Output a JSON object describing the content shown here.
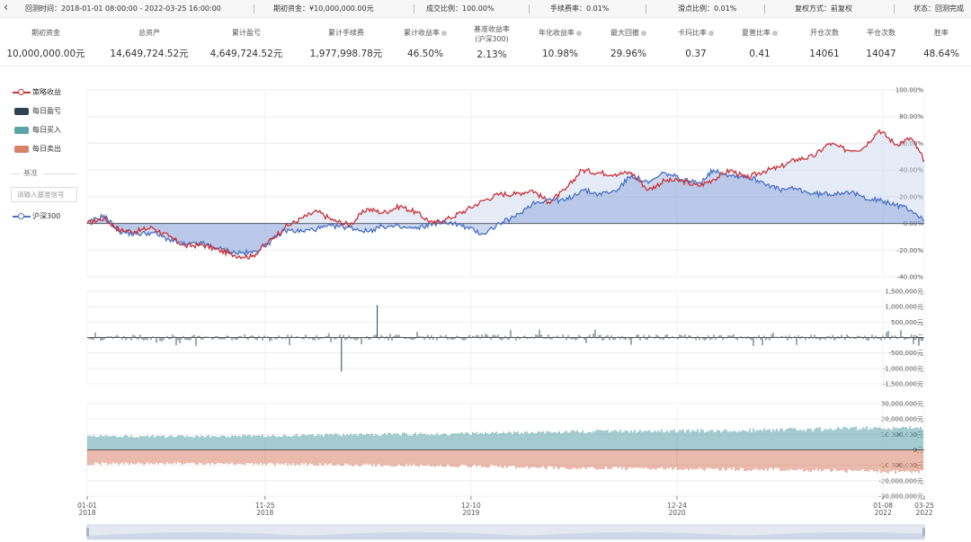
{
  "topbar": {
    "back_icon": "‹",
    "items": [
      "回测时间：2018-01-01 08:00:00 - 2022-03-25 16:00:00",
      "期初资金：¥10,000,000.00元",
      "成交比例：100.00%",
      "手续费率：0.01%",
      "滑点比例：0.01%",
      "复权方式：前复权",
      "状态：回测完成"
    ]
  },
  "stats": [
    {
      "label": "期初资金",
      "value": "10,000,000.00元"
    },
    {
      "label": "总资产",
      "value": "14,649,724.52元"
    },
    {
      "label": "累计盈亏",
      "value": "4,649,724.52元"
    },
    {
      "label": "累计手续费",
      "value": "1,977,998.78元"
    },
    {
      "label": "累计收益率",
      "value": "46.50%",
      "info": true
    },
    {
      "label": "基准收益率",
      "sublabel": "(沪深300)",
      "value": "2.13%"
    },
    {
      "label": "年化收益率",
      "value": "10.98%",
      "info": true
    },
    {
      "label": "最大回撤",
      "value": "29.96%",
      "info": true
    },
    {
      "label": "卡玛比率",
      "value": "0.37",
      "info": true
    },
    {
      "label": "夏普比率",
      "value": "0.41",
      "info": true
    },
    {
      "label": "开仓次数",
      "value": "14061"
    },
    {
      "label": "平仓次数",
      "value": "14047"
    },
    {
      "label": "胜率",
      "value": "48.64%"
    }
  ],
  "legend": {
    "strategy": "策略收益",
    "daily_pnl": "每日盈亏",
    "daily_buy": "每日买入",
    "daily_sell": "每日卖出",
    "benchmark_divider": "基准",
    "benchmark_input_placeholder": "请输入基准信号",
    "benchmark": "沪深300"
  },
  "colors": {
    "strategy": "#c9333a",
    "benchmark": "#4a72c4",
    "pnl": "#2f4050",
    "buy": "#5aa3a8",
    "sell": "#d98068",
    "area_fill": "#c5d3ee"
  },
  "chart_data": [
    {
      "type": "line",
      "name": "cumulative-returns",
      "y_unit": "%",
      "ylim": [
        -40,
        100
      ],
      "yticks": [
        "100.00%",
        "80.00%",
        "60.00%",
        "40.00%",
        "20.00%",
        "0.00%",
        "-20.00%",
        "-40.00%"
      ],
      "series": [
        {
          "name": "策略收益",
          "x": [
            "2018-01-01",
            "2018-02-01",
            "2018-03-01",
            "2018-04-01",
            "2018-05-01",
            "2018-06-01",
            "2018-07-01",
            "2018-08-01",
            "2018-09-01",
            "2018-10-01",
            "2018-11-01",
            "2018-12-01",
            "2019-01-01",
            "2019-02-01",
            "2019-03-01",
            "2019-04-01",
            "2019-05-01",
            "2019-06-01",
            "2019-07-01",
            "2019-08-01",
            "2019-09-01",
            "2019-10-01",
            "2019-11-01",
            "2019-12-01",
            "2020-01-01",
            "2020-02-01",
            "2020-03-01",
            "2020-04-01",
            "2020-05-01",
            "2020-06-01",
            "2020-07-01",
            "2020-08-01",
            "2020-09-01",
            "2020-10-01",
            "2020-11-01",
            "2020-12-01",
            "2021-01-01",
            "2021-02-01",
            "2021-03-01",
            "2021-04-01",
            "2021-05-01",
            "2021-06-01",
            "2021-07-01",
            "2021-08-01",
            "2021-09-01",
            "2021-10-01",
            "2021-11-01",
            "2021-12-01",
            "2022-01-01",
            "2022-02-01",
            "2022-03-01",
            "2022-03-25"
          ],
          "values": [
            0,
            4,
            -5,
            -6,
            -3,
            -10,
            -17,
            -16,
            -20,
            -24,
            -25,
            -14,
            -3,
            4,
            9,
            2,
            -1,
            11,
            8,
            13,
            8,
            0,
            4,
            10,
            17,
            22,
            22,
            25,
            16,
            25,
            40,
            38,
            37,
            38,
            25,
            32,
            32,
            28,
            33,
            40,
            34,
            39,
            42,
            48,
            50,
            60,
            55,
            56,
            70,
            59,
            64,
            47
          ]
        },
        {
          "name": "沪深300",
          "x": [
            "2018-01-01",
            "2018-02-01",
            "2018-03-01",
            "2018-04-01",
            "2018-05-01",
            "2018-06-01",
            "2018-07-01",
            "2018-08-01",
            "2018-09-01",
            "2018-10-01",
            "2018-11-01",
            "2018-12-01",
            "2019-01-01",
            "2019-02-01",
            "2019-03-01",
            "2019-04-01",
            "2019-05-01",
            "2019-06-01",
            "2019-07-01",
            "2019-08-01",
            "2019-09-01",
            "2019-10-01",
            "2019-11-01",
            "2019-12-01",
            "2020-01-01",
            "2020-02-01",
            "2020-03-01",
            "2020-04-01",
            "2020-05-01",
            "2020-06-01",
            "2020-07-01",
            "2020-08-01",
            "2020-09-01",
            "2020-10-01",
            "2020-11-01",
            "2020-12-01",
            "2021-01-01",
            "2021-02-01",
            "2021-03-01",
            "2021-04-01",
            "2021-05-01",
            "2021-06-01",
            "2021-07-01",
            "2021-08-01",
            "2021-09-01",
            "2021-10-01",
            "2021-11-01",
            "2021-12-01",
            "2022-01-01",
            "2022-02-01",
            "2022-03-01",
            "2022-03-25"
          ],
          "values": [
            0,
            6,
            -6,
            -8,
            -7,
            -12,
            -16,
            -15,
            -19,
            -22,
            -22,
            -15,
            -5,
            -6,
            -4,
            -2,
            -3,
            -6,
            -2,
            -3,
            -4,
            0,
            1,
            -3,
            -8,
            0,
            5,
            15,
            18,
            17,
            25,
            22,
            24,
            36,
            30,
            38,
            33,
            30,
            40,
            36,
            35,
            31,
            25,
            26,
            22,
            22,
            24,
            20,
            17,
            14,
            10,
            2
          ]
        }
      ]
    },
    {
      "type": "bar",
      "name": "daily-pnl",
      "series_name": "每日盈亏",
      "y_unit": "元",
      "ylim": [
        -1500000,
        1500000
      ],
      "yticks": [
        "1,500,000元",
        "1,000,000元",
        "500,000元",
        "0元",
        "-500,000元",
        "-1,000,000元",
        "-1,500,000元"
      ],
      "summary": {
        "typical_abs": 100000,
        "max": 1050000,
        "min": -1100000,
        "max_date": "2019-06-20",
        "min_date": "2019-04-15"
      }
    },
    {
      "type": "bar",
      "name": "daily-trades",
      "series": [
        {
          "name": "每日买入",
          "x": [
            "2018-01-01",
            "2018-06-01",
            "2018-11-25",
            "2019-06-01",
            "2019-12-10",
            "2020-06-01",
            "2020-12-24",
            "2021-06-01",
            "2022-01-08",
            "2022-03-25"
          ],
          "values": [
            10000000,
            9500000,
            10000000,
            11000000,
            11500000,
            13000000,
            13500000,
            14000000,
            15500000,
            16000000
          ]
        },
        {
          "name": "每日卖出",
          "x": [
            "2018-01-01",
            "2018-06-01",
            "2018-11-25",
            "2019-06-01",
            "2019-12-10",
            "2020-06-01",
            "2020-12-24",
            "2021-06-01",
            "2022-01-08",
            "2022-03-25"
          ],
          "values": [
            -10000000,
            -9500000,
            -10000000,
            -11000000,
            -11500000,
            -13000000,
            -13500000,
            -14000000,
            -15500000,
            -16000000
          ]
        }
      ],
      "y_unit": "元",
      "ylim": [
        -30000000,
        30000000
      ],
      "yticks": [
        "30,000,000元",
        "20,000,000元",
        "10,000,000元",
        "0元",
        "-10,000,000元",
        "-20,000,000元",
        "-30,000,000元"
      ]
    }
  ],
  "xaxis": {
    "range": [
      "2018-01-01",
      "2022-03-25"
    ],
    "ticks": [
      {
        "date": "2018-01-01",
        "line1": "01-01",
        "line2": "2018"
      },
      {
        "date": "2018-11-25",
        "line1": "11-25",
        "line2": "2018"
      },
      {
        "date": "2019-12-10",
        "line1": "12-10",
        "line2": "2019"
      },
      {
        "date": "2020-12-24",
        "line1": "12-24",
        "line2": "2020"
      },
      {
        "date": "2022-01-08",
        "line1": "01-08",
        "line2": "2022"
      },
      {
        "date": "2022-03-25",
        "line1": "03-25",
        "line2": "2022"
      }
    ]
  }
}
